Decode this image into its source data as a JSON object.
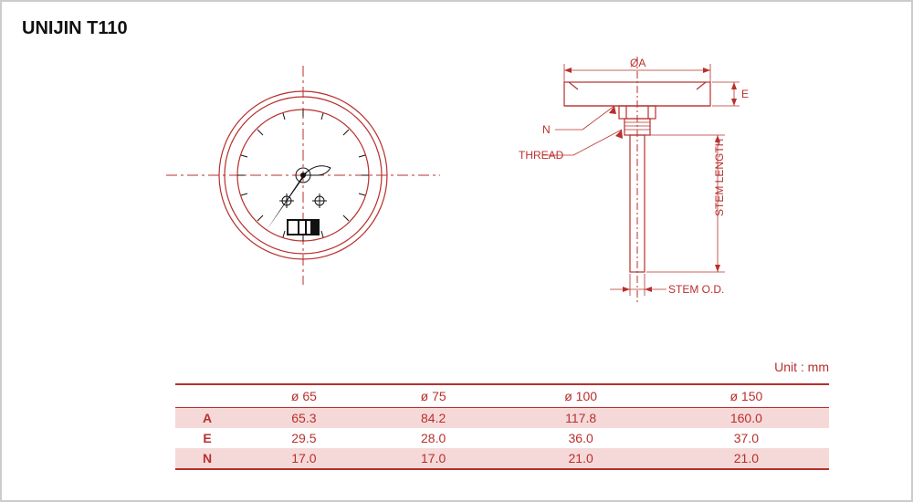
{
  "title": "UNIJIN T110",
  "unit_label": "Unit : mm",
  "colors": {
    "line": "#b8302c",
    "text": "#b8302c",
    "row_even": "#f5d9d8",
    "black": "#111111",
    "background": "#ffffff",
    "frame_border": "#cccccc"
  },
  "profile_labels": {
    "diameter_A": "ØA",
    "E": "E",
    "N": "N",
    "thread": "THREAD",
    "stem_length": "STEM LENGTH",
    "stem_od": "STEM O.D."
  },
  "table": {
    "columns": [
      "",
      "ø 65",
      "ø 75",
      "ø 100",
      "ø 150"
    ],
    "rows": [
      {
        "label": "A",
        "values": [
          "65.3",
          "84.2",
          "117.8",
          "160.0"
        ],
        "highlight": true
      },
      {
        "label": "E",
        "values": [
          "29.5",
          "28.0",
          "36.0",
          "37.0"
        ],
        "highlight": false
      },
      {
        "label": "N",
        "values": [
          "17.0",
          "17.0",
          "21.0",
          "21.0"
        ],
        "highlight": true
      }
    ]
  }
}
